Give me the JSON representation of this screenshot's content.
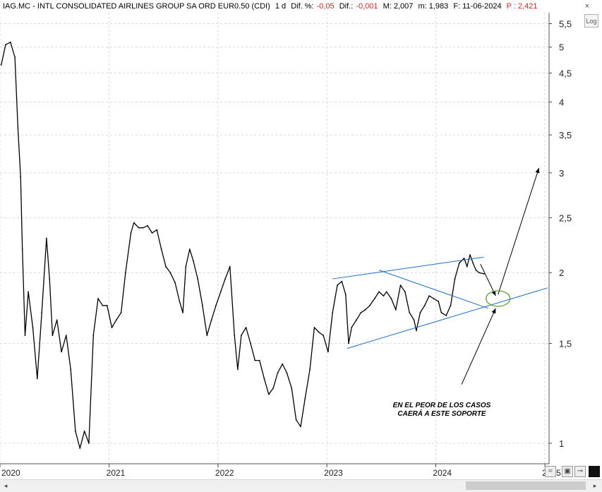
{
  "header": {
    "ticker": "IAG.MC - INTL CONSOLIDATED AIRLINES GROUP SA ORD EUR0.50 (CDI)",
    "interval": "1 d",
    "dif_pct_label": "Dif. %:",
    "dif_pct_value": "-0,05",
    "dif_label": "Dif.:",
    "dif_value": "-0,001",
    "max_label": "M: 2,007",
    "min_label": "m: 1,983",
    "date_label": "F: 11-06-2024",
    "price_label": "P : 2,421"
  },
  "controls": {
    "log_label": "Log",
    "close_label": "×",
    "scroll_left": "◂",
    "scroll_right": "▸"
  },
  "colors": {
    "price_line": "#000000",
    "trendline": "#1f6fbf",
    "circle": "#5aa02c",
    "grid": "#d9d9d9",
    "negative": "#e02020"
  },
  "annotation": {
    "line1": "EN EL PEOR DE LOS CASOS",
    "line2": "CAERÁ A ESTE SOPORTE"
  },
  "chart_data": {
    "type": "line",
    "title": "IAG.MC - INTL CONSOLIDATED AIRLINES GROUP SA ORD EUR0.50 (CDI)",
    "xlabel": "",
    "ylabel": "",
    "log_scale": true,
    "grid": true,
    "x_tick_labels": [
      "2020",
      "2021",
      "2022",
      "2023",
      "2024",
      "2025"
    ],
    "y_tick_labels": [
      "1",
      "1,5",
      "2",
      "2,5",
      "3",
      "3,5",
      "4",
      "4,5",
      "5",
      "5,5"
    ],
    "y_ticks": [
      1,
      1.5,
      2,
      2.5,
      3,
      3.5,
      4,
      4.5,
      5,
      5.5
    ],
    "ylim": [
      0.92,
      5.75
    ],
    "xlim": [
      "2020-01-01",
      "2025-01-15"
    ],
    "series": [
      {
        "values": [
          [
            "2020-01-05",
            4.65
          ],
          [
            "2020-01-20",
            5.05
          ],
          [
            "2020-02-05",
            5.1
          ],
          [
            "2020-02-20",
            4.8
          ],
          [
            "2020-03-01",
            3.6
          ],
          [
            "2020-03-10",
            2.95
          ],
          [
            "2020-03-16",
            2.2
          ],
          [
            "2020-03-25",
            1.55
          ],
          [
            "2020-04-05",
            1.85
          ],
          [
            "2020-04-20",
            1.6
          ],
          [
            "2020-05-05",
            1.3
          ],
          [
            "2020-05-20",
            1.7
          ],
          [
            "2020-06-05",
            2.3
          ],
          [
            "2020-06-15",
            1.95
          ],
          [
            "2020-06-25",
            1.55
          ],
          [
            "2020-07-10",
            1.65
          ],
          [
            "2020-07-25",
            1.45
          ],
          [
            "2020-08-10",
            1.55
          ],
          [
            "2020-08-25",
            1.35
          ],
          [
            "2020-09-10",
            1.05
          ],
          [
            "2020-09-25",
            0.98
          ],
          [
            "2020-10-10",
            1.05
          ],
          [
            "2020-10-25",
            1.0
          ],
          [
            "2020-11-09",
            1.55
          ],
          [
            "2020-11-25",
            1.8
          ],
          [
            "2020-12-10",
            1.75
          ],
          [
            "2020-12-25",
            1.75
          ],
          [
            "2021-01-10",
            1.6
          ],
          [
            "2021-01-25",
            1.65
          ],
          [
            "2021-02-10",
            1.7
          ],
          [
            "2021-02-25",
            2.0
          ],
          [
            "2021-03-15",
            2.35
          ],
          [
            "2021-03-25",
            2.45
          ],
          [
            "2021-04-10",
            2.4
          ],
          [
            "2021-04-25",
            2.4
          ],
          [
            "2021-05-10",
            2.42
          ],
          [
            "2021-05-25",
            2.35
          ],
          [
            "2021-06-10",
            2.38
          ],
          [
            "2021-06-25",
            2.2
          ],
          [
            "2021-07-10",
            2.05
          ],
          [
            "2021-07-25",
            2.0
          ],
          [
            "2021-08-10",
            1.92
          ],
          [
            "2021-08-25",
            1.78
          ],
          [
            "2021-09-05",
            1.7
          ],
          [
            "2021-09-15",
            2.05
          ],
          [
            "2021-09-28",
            2.2
          ],
          [
            "2021-10-10",
            2.1
          ],
          [
            "2021-10-25",
            1.95
          ],
          [
            "2021-11-10",
            1.75
          ],
          [
            "2021-11-25",
            1.55
          ],
          [
            "2021-12-10",
            1.65
          ],
          [
            "2021-12-25",
            1.75
          ],
          [
            "2022-01-10",
            1.85
          ],
          [
            "2022-01-25",
            1.95
          ],
          [
            "2022-02-10",
            2.05
          ],
          [
            "2022-02-25",
            1.55
          ],
          [
            "2022-03-08",
            1.35
          ],
          [
            "2022-03-20",
            1.55
          ],
          [
            "2022-04-05",
            1.6
          ],
          [
            "2022-04-20",
            1.5
          ],
          [
            "2022-05-05",
            1.4
          ],
          [
            "2022-05-20",
            1.4
          ],
          [
            "2022-06-05",
            1.3
          ],
          [
            "2022-06-20",
            1.22
          ],
          [
            "2022-07-05",
            1.25
          ],
          [
            "2022-07-20",
            1.33
          ],
          [
            "2022-08-05",
            1.38
          ],
          [
            "2022-08-20",
            1.33
          ],
          [
            "2022-09-05",
            1.25
          ],
          [
            "2022-09-20",
            1.1
          ],
          [
            "2022-10-05",
            1.07
          ],
          [
            "2022-10-20",
            1.2
          ],
          [
            "2022-11-05",
            1.35
          ],
          [
            "2022-11-20",
            1.6
          ],
          [
            "2022-12-05",
            1.57
          ],
          [
            "2022-12-20",
            1.55
          ],
          [
            "2023-01-05",
            1.45
          ],
          [
            "2023-01-20",
            1.7
          ],
          [
            "2023-02-05",
            1.9
          ],
          [
            "2023-02-20",
            1.93
          ],
          [
            "2023-03-05",
            1.83
          ],
          [
            "2023-03-15",
            1.5
          ],
          [
            "2023-03-25",
            1.6
          ],
          [
            "2023-04-10",
            1.65
          ],
          [
            "2023-04-25",
            1.7
          ],
          [
            "2023-05-10",
            1.72
          ],
          [
            "2023-05-25",
            1.75
          ],
          [
            "2023-06-10",
            1.8
          ],
          [
            "2023-06-25",
            1.85
          ],
          [
            "2023-07-10",
            1.82
          ],
          [
            "2023-07-20",
            1.85
          ],
          [
            "2023-08-05",
            1.8
          ],
          [
            "2023-08-20",
            1.72
          ],
          [
            "2023-09-05",
            1.9
          ],
          [
            "2023-09-20",
            1.85
          ],
          [
            "2023-10-05",
            1.7
          ],
          [
            "2023-10-20",
            1.65
          ],
          [
            "2023-10-28",
            1.58
          ],
          [
            "2023-11-10",
            1.7
          ],
          [
            "2023-11-25",
            1.75
          ],
          [
            "2023-12-10",
            1.82
          ],
          [
            "2023-12-25",
            1.8
          ],
          [
            "2024-01-10",
            1.78
          ],
          [
            "2024-01-20",
            1.7
          ],
          [
            "2024-02-05",
            1.68
          ],
          [
            "2024-02-20",
            1.75
          ],
          [
            "2024-03-05",
            1.95
          ],
          [
            "2024-03-20",
            2.08
          ],
          [
            "2024-04-05",
            2.12
          ],
          [
            "2024-04-15",
            2.05
          ],
          [
            "2024-04-25",
            2.15
          ],
          [
            "2024-05-05",
            2.08
          ],
          [
            "2024-05-15",
            2.02
          ],
          [
            "2024-05-25",
            2.0
          ],
          [
            "2024-06-11",
            1.99
          ]
        ]
      }
    ],
    "trendlines": [
      {
        "from": [
          "2023-01-20",
          1.95
        ],
        "to": [
          "2024-06-10",
          2.13
        ]
      },
      {
        "from": [
          "2023-06-25",
          2.02
        ],
        "to": [
          "2024-06-25",
          1.73
        ]
      },
      {
        "from": [
          "2023-03-10",
          1.47
        ],
        "to": [
          "2025-01-10",
          1.88
        ]
      }
    ],
    "arrows": [
      {
        "from": [
          "2024-05-30",
          2.07
        ],
        "to": [
          "2024-07-20",
          1.82
        ]
      },
      {
        "from": [
          "2024-07-28",
          1.83
        ],
        "to": [
          "2024-12-12",
          3.06
        ]
      },
      {
        "from": [
          "2024-03-28",
          1.27
        ],
        "to": [
          "2024-07-20",
          1.73
        ]
      }
    ],
    "support_circle": {
      "center": [
        "2024-07-28",
        1.8
      ]
    }
  }
}
